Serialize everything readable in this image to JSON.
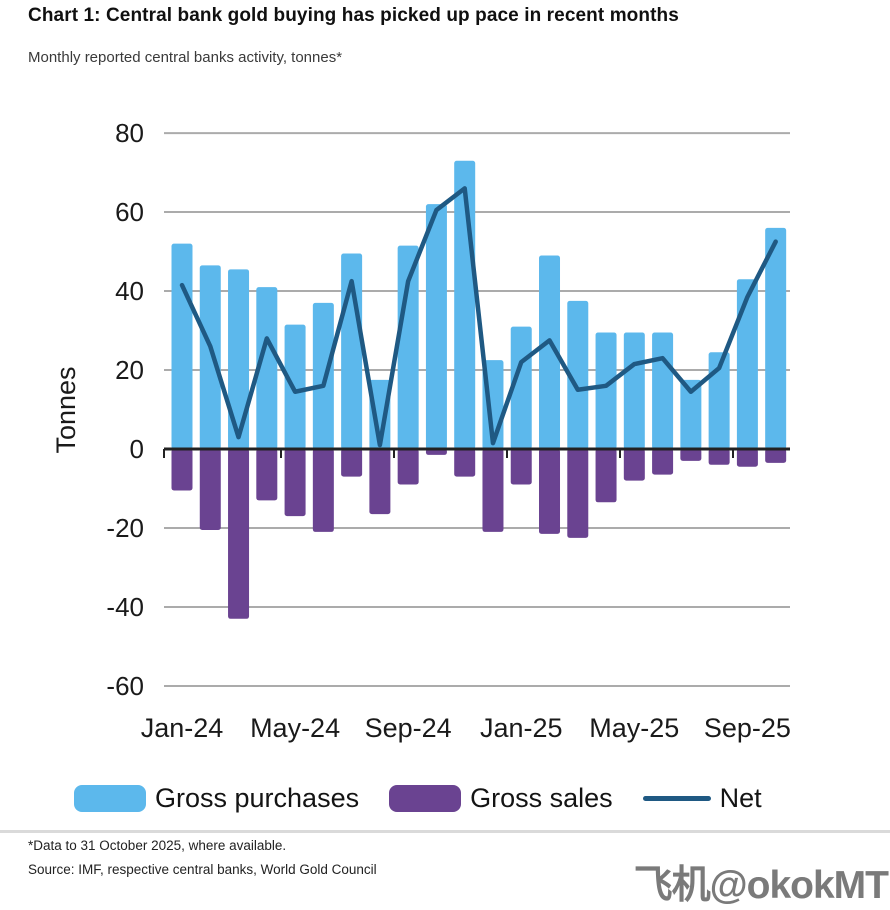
{
  "header": {
    "title": "Chart 1: Central bank gold buying has picked up pace in recent months",
    "subtitle": "Monthly reported central banks activity, tonnes*"
  },
  "chart_data": {
    "type": "bar",
    "subtype": "combo-bar-line",
    "categories": [
      "Jan-24",
      "Feb-24",
      "Mar-24",
      "Apr-24",
      "May-24",
      "Jun-24",
      "Jul-24",
      "Aug-24",
      "Sep-24",
      "Oct-24",
      "Nov-24",
      "Dec-24",
      "Jan-25",
      "Feb-25",
      "Mar-25",
      "Apr-25",
      "May-25",
      "Jun-25",
      "Jul-25",
      "Aug-25",
      "Sep-25",
      "Oct-25"
    ],
    "x_tick_labels": [
      "Jan-24",
      "May-24",
      "Sep-24",
      "Jan-25",
      "May-25",
      "Sep-25"
    ],
    "x_tick_indices": [
      0,
      4,
      8,
      12,
      16,
      20
    ],
    "series": [
      {
        "name": "Gross purchases",
        "type": "bar",
        "color": "#5CB8EC",
        "values": [
          52,
          46.5,
          45.5,
          41,
          31.5,
          37,
          49.5,
          17.5,
          51.5,
          62,
          73,
          22.5,
          31,
          49,
          37.5,
          29.5,
          29.5,
          29.5,
          17.5,
          24.5,
          43,
          56
        ]
      },
      {
        "name": "Gross sales",
        "type": "bar",
        "color": "#6A4391",
        "values": [
          -10.5,
          -20.5,
          -43,
          -13,
          -17,
          -21,
          -7,
          -16.5,
          -9,
          -1.5,
          -7,
          -21,
          -9,
          -21.5,
          -22.5,
          -13.5,
          -8,
          -6.5,
          -3,
          -4,
          -4.5,
          -3.5
        ]
      },
      {
        "name": "Net",
        "type": "line",
        "color": "#1F5983",
        "values": [
          41.5,
          26,
          3,
          28,
          14.5,
          16,
          42.5,
          1,
          42.5,
          60.5,
          66,
          1.5,
          22,
          27.5,
          15,
          16,
          21.5,
          23,
          14.5,
          20.5,
          38.5,
          52.5
        ]
      }
    ],
    "title": "Chart 1: Central bank gold buying has picked up pace in recent months",
    "xlabel": "",
    "ylabel": "Tonnes",
    "ylim": [
      -60,
      80
    ],
    "ytick_step": 20,
    "grid": true,
    "legend_position": "bottom"
  },
  "colors": {
    "background": "#FFFFFF",
    "grid": "#ABABAB",
    "axis": "#222222",
    "tick_text": "#1A1A1A",
    "divider": "#DADADA",
    "watermark": "#7A7A7A"
  },
  "footer": {
    "note": "*Data to 31 October 2025, where available.",
    "source": "Source: IMF, respective central banks, World Gold Council"
  },
  "watermark": "飞机@okokMT"
}
